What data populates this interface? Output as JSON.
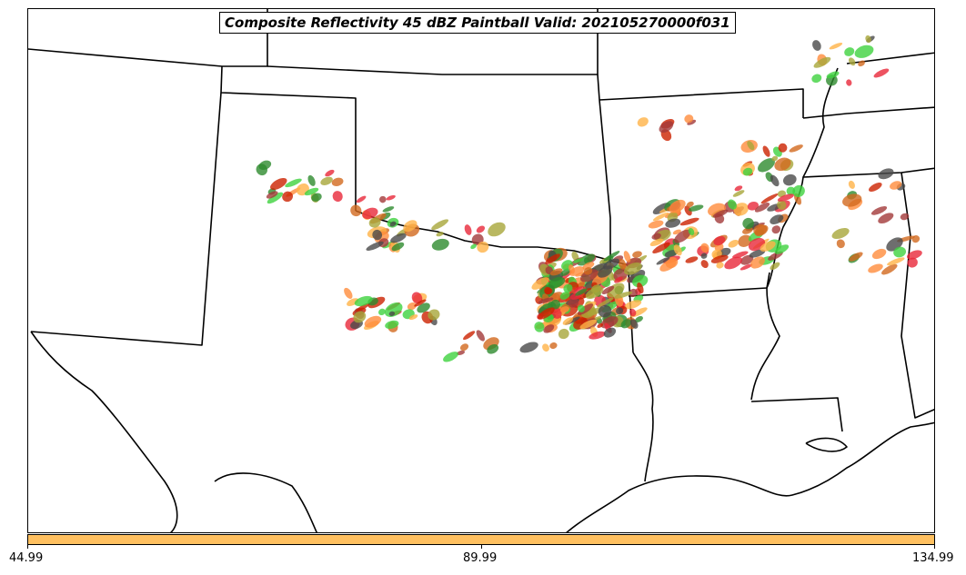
{
  "title": "Composite Reflectivity 45 dBZ Paintball Valid: 202105270000f031",
  "colorbar": {
    "color": "#ffc060",
    "ticks": [
      "44.99",
      "89.99",
      "134.99"
    ]
  },
  "colors": {
    "paintball": [
      "#a33a3a",
      "#e8283a",
      "#ff8c3c",
      "#ffb347",
      "#a8a63a",
      "#3fd23f",
      "#2e8b2e",
      "#4a4a4a",
      "#d2691e",
      "#cc2200"
    ]
  }
}
